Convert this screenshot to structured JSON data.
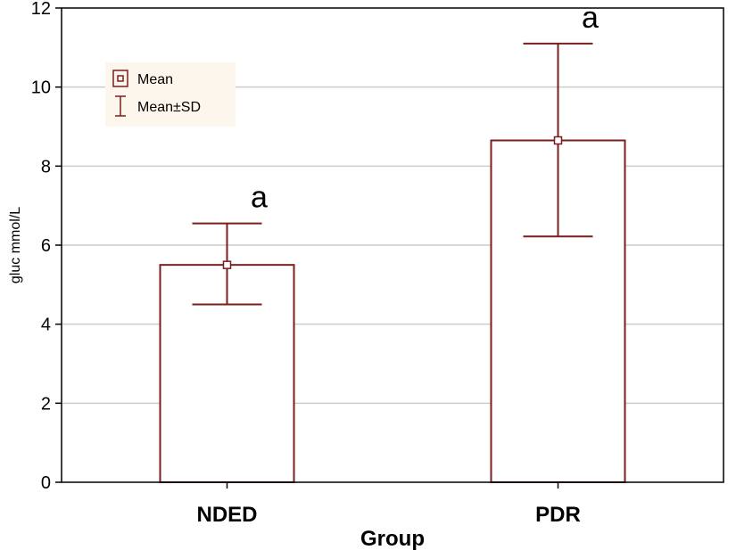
{
  "chart_data": {
    "type": "bar",
    "title": "",
    "xlabel": "Group",
    "ylabel": "gluc mmol/L",
    "categories": [
      "NDED",
      "PDR"
    ],
    "values": [
      5.5,
      8.65
    ],
    "error_low": [
      4.5,
      6.22
    ],
    "error_high": [
      6.55,
      11.1
    ],
    "annotations": [
      "a",
      "a"
    ],
    "ylim": [
      0,
      12
    ],
    "yticks": [
      "0",
      "2",
      "4",
      "6",
      "8",
      "10",
      "12"
    ],
    "grid": true,
    "legend": {
      "placement": "top-left",
      "entries": [
        {
          "label": "Mean",
          "marker": "square-icon"
        },
        {
          "label": "Mean±SD",
          "marker": "error-bar-icon"
        }
      ]
    },
    "colors": {
      "bar_edge": "#7a1f1f",
      "bar_fill": "#ffffff",
      "grid": "#cccccc",
      "legend_bg": "#fdf6ec",
      "axes": "#000000"
    }
  }
}
